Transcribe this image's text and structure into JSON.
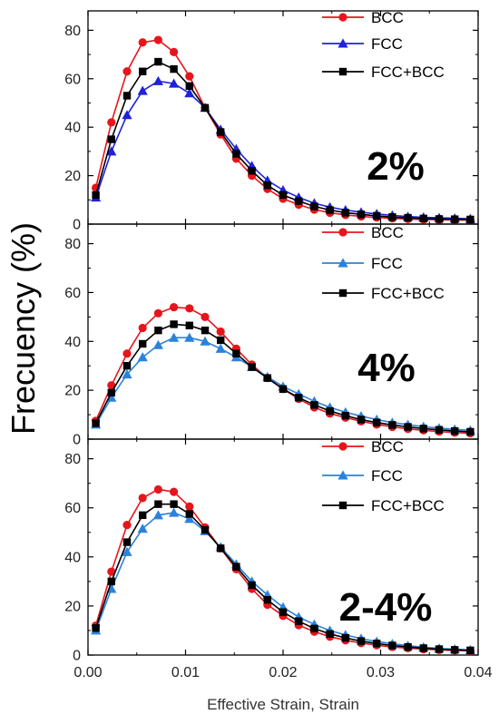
{
  "figure": {
    "ylabel": "Frecuency (%)",
    "xlabel": "Effective Strain, Strain",
    "x_ticks": [
      "0.00",
      "0.01",
      "0.02",
      "0.03",
      "0.04"
    ],
    "y_ticks": [
      "0",
      "20",
      "40",
      "60",
      "80"
    ]
  },
  "chart_data": [
    {
      "type": "line",
      "annotation": "2%",
      "xlim": [
        0,
        0.04
      ],
      "ylim": [
        0,
        88
      ],
      "legend_position": "top-right",
      "x": [
        0.0008,
        0.0024,
        0.004,
        0.0056,
        0.0072,
        0.0088,
        0.0104,
        0.012,
        0.0136,
        0.0152,
        0.0168,
        0.0184,
        0.02,
        0.0216,
        0.0232,
        0.0248,
        0.0264,
        0.028,
        0.0296,
        0.0312,
        0.0328,
        0.0344,
        0.036,
        0.0376,
        0.0392
      ],
      "series": [
        {
          "name": "BCC",
          "color": "#e8141c",
          "marker": "circle",
          "values": [
            15,
            42,
            63,
            75,
            76,
            71,
            61,
            48,
            37,
            27,
            20,
            14.5,
            10.5,
            8,
            6,
            4.7,
            3.8,
            3.2,
            2.7,
            2.4,
            2.1,
            1.9,
            1.8,
            1.7,
            1.6
          ]
        },
        {
          "name": "FCC",
          "color": "#1e22d8",
          "marker": "triangle",
          "values": [
            11,
            30,
            45,
            55,
            59,
            58,
            54,
            48,
            39,
            31,
            24,
            18,
            14,
            11,
            8.6,
            7,
            5.8,
            4.9,
            4.2,
            3.6,
            3.1,
            2.8,
            2.6,
            2.4,
            2.2
          ]
        },
        {
          "name": "FCC+BCC",
          "color": "#000000",
          "marker": "square",
          "values": [
            12,
            35,
            53,
            63,
            67,
            64,
            57,
            48,
            38,
            29,
            22,
            16,
            12,
            9.5,
            7.3,
            5.8,
            4.7,
            4,
            3.4,
            2.9,
            2.6,
            2.3,
            2.1,
            2,
            1.9
          ]
        }
      ]
    },
    {
      "type": "line",
      "annotation": "4%",
      "xlim": [
        0,
        0.04
      ],
      "ylim": [
        0,
        88
      ],
      "legend_position": "top-right",
      "x": [
        0.0008,
        0.0024,
        0.004,
        0.0056,
        0.0072,
        0.0088,
        0.0104,
        0.012,
        0.0136,
        0.0152,
        0.0168,
        0.0184,
        0.02,
        0.0216,
        0.0232,
        0.0248,
        0.0264,
        0.028,
        0.0296,
        0.0312,
        0.0328,
        0.0344,
        0.036,
        0.0376,
        0.0392
      ],
      "series": [
        {
          "name": "BCC",
          "color": "#e8141c",
          "marker": "circle",
          "values": [
            7.5,
            22,
            35,
            45.5,
            51.5,
            54,
            53.5,
            50,
            44,
            37,
            30.5,
            25,
            20.5,
            16.5,
            13,
            10.5,
            8.8,
            7.3,
            6,
            5,
            4.2,
            3.6,
            3.1,
            2.7,
            2.4
          ]
        },
        {
          "name": "FCC",
          "color": "#2a82dc",
          "marker": "triangle",
          "values": [
            6,
            17,
            26.5,
            33.5,
            38.5,
            41.5,
            41.5,
            40,
            37,
            33.5,
            29.5,
            25.5,
            21.5,
            18.5,
            15.5,
            13,
            11,
            9.4,
            8,
            6.8,
            5.9,
            5.1,
            4.5,
            4,
            3.6
          ]
        },
        {
          "name": "FCC+BCC",
          "color": "#000000",
          "marker": "square",
          "values": [
            6.5,
            19,
            30,
            39,
            44.5,
            47,
            46.5,
            44.5,
            40.5,
            35,
            29.5,
            25,
            20.5,
            17,
            14,
            11.5,
            9.6,
            8,
            6.8,
            5.8,
            5,
            4.3,
            3.8,
            3.3,
            3
          ]
        }
      ]
    },
    {
      "type": "line",
      "annotation": "2-4%",
      "xlim": [
        0,
        0.04
      ],
      "ylim": [
        0,
        88
      ],
      "legend_position": "top-right",
      "x": [
        0.0008,
        0.0024,
        0.004,
        0.0056,
        0.0072,
        0.0088,
        0.0104,
        0.012,
        0.0136,
        0.0152,
        0.0168,
        0.0184,
        0.02,
        0.0216,
        0.0232,
        0.0248,
        0.0264,
        0.028,
        0.0296,
        0.0312,
        0.0328,
        0.0344,
        0.036,
        0.0376,
        0.0392
      ],
      "series": [
        {
          "name": "BCC",
          "color": "#e8141c",
          "marker": "circle",
          "values": [
            12,
            34,
            53,
            64,
            67.5,
            66.5,
            60.5,
            52,
            43.5,
            35,
            27,
            20.5,
            16,
            12.2,
            9.5,
            7.5,
            6,
            4.9,
            4,
            3.3,
            2.8,
            2.4,
            2.1,
            1.9,
            1.7
          ]
        },
        {
          "name": "FCC",
          "color": "#2a82dc",
          "marker": "triangle",
          "values": [
            10,
            27,
            42,
            51.5,
            57,
            58,
            55.5,
            50.5,
            44,
            37,
            30,
            24.5,
            19.5,
            15.5,
            12.5,
            10,
            8.2,
            6.7,
            5.5,
            4.6,
            3.8,
            3.2,
            2.7,
            2.4,
            2.1
          ]
        },
        {
          "name": "FCC+BCC",
          "color": "#000000",
          "marker": "square",
          "values": [
            11,
            30,
            46,
            57,
            61.5,
            61.5,
            57.5,
            51,
            43.5,
            36,
            28.5,
            22.5,
            17.5,
            13.8,
            10.8,
            8.6,
            7,
            5.7,
            4.7,
            3.9,
            3.3,
            2.8,
            2.4,
            2.1,
            1.9
          ]
        }
      ]
    }
  ]
}
